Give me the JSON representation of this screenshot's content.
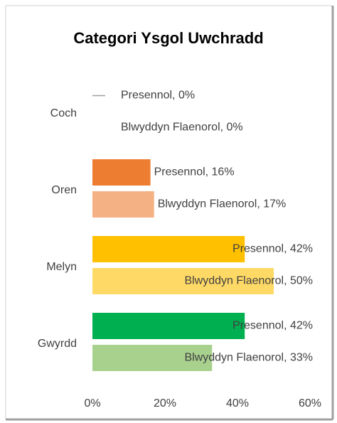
{
  "chart_data": {
    "type": "bar",
    "orientation": "horizontal",
    "title": "Categori Ysgol Uwchradd",
    "categories": [
      "Coch",
      "Oren",
      "Melyn",
      "Gwyrdd"
    ],
    "series": [
      {
        "colors": [
          "#ff0000",
          "#ed7d31",
          "#ffc000",
          "#00b050"
        ],
        "values": [
          0,
          16,
          42,
          42
        ],
        "value_labels": [
          "Presennol, 0%",
          "Presennol, 16%",
          "Presennol, 42%",
          "Presennol, 42%"
        ]
      },
      {
        "colors": [
          "#ff9999",
          "#f4b183",
          "#ffd966",
          "#a9d18e"
        ],
        "values": [
          0,
          17,
          50,
          33
        ],
        "value_labels": [
          "Blwyddyn Flaenorol, 0%",
          "Blwyddyn Flaenorol, 17%",
          "Blwyddyn Flaenorol, 50%",
          "Blwyddyn Flaenorol, 33%"
        ]
      }
    ],
    "xlim": [
      0,
      60
    ],
    "xticks": [
      {
        "value": 0,
        "label": "0%"
      },
      {
        "value": 20,
        "label": "20%"
      },
      {
        "value": 40,
        "label": "40%"
      },
      {
        "value": 60,
        "label": "60%"
      }
    ]
  }
}
